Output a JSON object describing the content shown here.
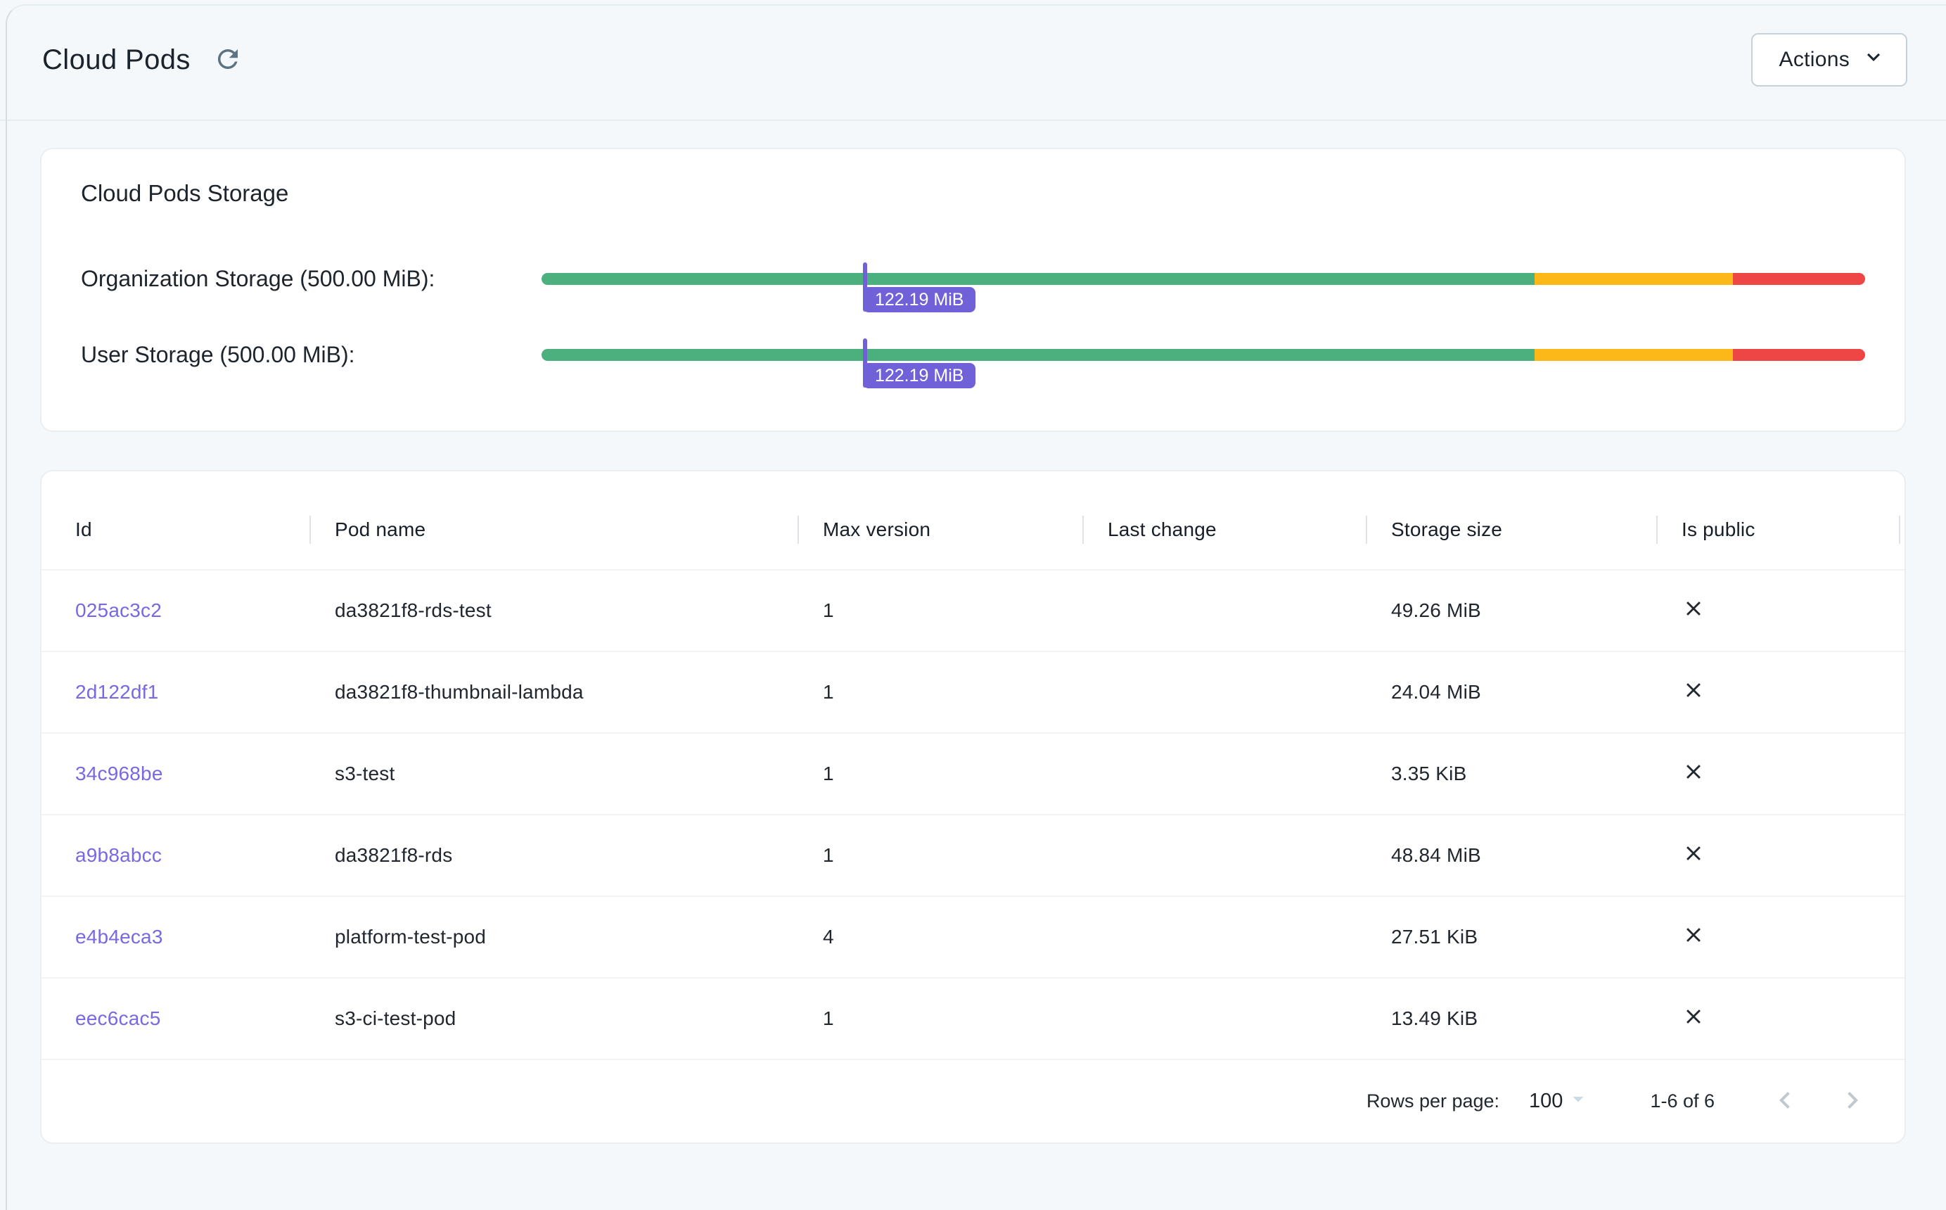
{
  "header": {
    "title": "Cloud Pods",
    "actions_label": "Actions"
  },
  "storage_card": {
    "title": "Cloud Pods Storage",
    "segments": [
      {
        "name": "ok",
        "percent": 75,
        "color": "#4cb07e"
      },
      {
        "name": "warning",
        "percent": 15,
        "color": "#fcb818"
      },
      {
        "name": "critical",
        "percent": 10,
        "color": "#ee4545"
      }
    ],
    "marker_color": "#7161d8",
    "bars": [
      {
        "label": "Organization Storage (500.00 MiB):",
        "value_label": "122.19 MiB",
        "value_percent": 24.44
      },
      {
        "label": "User Storage (500.00 MiB):",
        "value_label": "122.19 MiB",
        "value_percent": 24.44
      }
    ]
  },
  "table": {
    "columns": [
      "Id",
      "Pod name",
      "Max version",
      "Last change",
      "Storage size",
      "Is public"
    ],
    "rows": [
      {
        "id": "025ac3c2",
        "pod_name": "da3821f8-rds-test",
        "max_version": "1",
        "last_change": "",
        "storage_size": "49.26 MiB",
        "is_public": false
      },
      {
        "id": "2d122df1",
        "pod_name": "da3821f8-thumbnail-lambda",
        "max_version": "1",
        "last_change": "",
        "storage_size": "24.04 MiB",
        "is_public": false
      },
      {
        "id": "34c968be",
        "pod_name": "s3-test",
        "max_version": "1",
        "last_change": "",
        "storage_size": "3.35 KiB",
        "is_public": false
      },
      {
        "id": "a9b8abcc",
        "pod_name": "da3821f8-rds",
        "max_version": "1",
        "last_change": "",
        "storage_size": "48.84 MiB",
        "is_public": false
      },
      {
        "id": "e4b4eca3",
        "pod_name": "platform-test-pod",
        "max_version": "4",
        "last_change": "",
        "storage_size": "27.51 KiB",
        "is_public": false
      },
      {
        "id": "eec6cac5",
        "pod_name": "s3-ci-test-pod",
        "max_version": "1",
        "last_change": "",
        "storage_size": "13.49 KiB",
        "is_public": false
      }
    ],
    "pagination": {
      "rows_per_page_label": "Rows per page:",
      "rows_per_page": "100",
      "range": "1-6 of 6"
    }
  },
  "colors": {
    "page_background": "#f5f8fa",
    "link_purple": "#7769e1",
    "marker_purple": "#7161d8",
    "bar_green": "#4cb07e",
    "bar_orange": "#fcb818",
    "bar_red": "#ee4545"
  }
}
